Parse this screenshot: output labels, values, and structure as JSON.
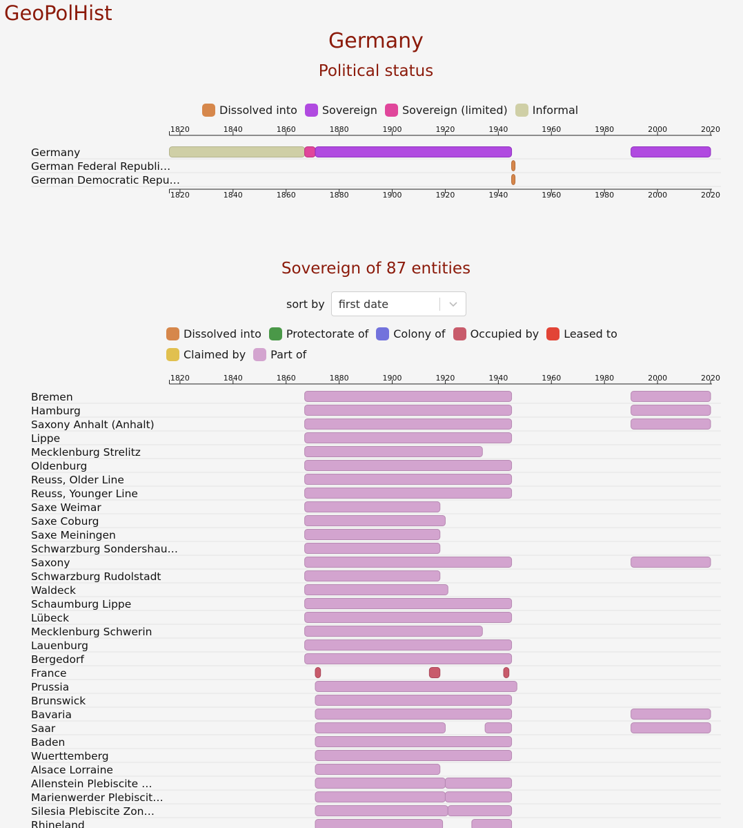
{
  "site": {
    "brand": "GeoPolHist"
  },
  "page": {
    "title": "Germany",
    "status_heading": "Political status",
    "entities_heading": "Sovereign of 87 entities",
    "sort_label": "sort by",
    "sort_value": "first date"
  },
  "colors": {
    "dissolved": "#d6874b",
    "sovereign": "#b04ae0",
    "sovereign_limited": "#e0469b",
    "informal": "#cfcfa6",
    "protectorate": "#4a9848",
    "colony": "#7272dc",
    "occupied": "#c85b6b",
    "leased": "#e24436",
    "claimed": "#e1c04f",
    "part_of": "#d3a4cf"
  },
  "chart_data": [
    {
      "type": "timeline",
      "legend": [
        {
          "label": "Dissolved into",
          "color": "#d6874b"
        },
        {
          "label": "Sovereign",
          "color": "#b04ae0"
        },
        {
          "label": "Sovereign (limited)",
          "color": "#e0469b"
        },
        {
          "label": "Informal",
          "color": "#cfcfa6"
        }
      ],
      "xlim": [
        1816,
        2020
      ],
      "ticks": [
        1820,
        1840,
        1860,
        1880,
        1900,
        1920,
        1940,
        1960,
        1980,
        2000,
        2020
      ],
      "rows": [
        {
          "label": "Germany",
          "spans": [
            {
              "start": 1816,
              "end": 1867,
              "status": "informal"
            },
            {
              "start": 1867,
              "end": 1871,
              "status": "sovereign_limited"
            },
            {
              "start": 1871,
              "end": 1945,
              "status": "sovereign"
            },
            {
              "start": 1990,
              "end": 2020,
              "status": "sovereign"
            }
          ]
        },
        {
          "label": "German Federal Republi…",
          "spans": [
            {
              "start": 1945,
              "end": 1946,
              "status": "dissolved"
            }
          ]
        },
        {
          "label": "German Democratic Repu…",
          "spans": [
            {
              "start": 1945,
              "end": 1946,
              "status": "dissolved"
            }
          ]
        }
      ]
    },
    {
      "type": "timeline",
      "legend": [
        {
          "label": "Dissolved into",
          "color": "#d6874b"
        },
        {
          "label": "Protectorate of",
          "color": "#4a9848"
        },
        {
          "label": "Colony of",
          "color": "#7272dc"
        },
        {
          "label": "Occupied by",
          "color": "#c85b6b"
        },
        {
          "label": "Leased to",
          "color": "#e24436"
        },
        {
          "label": "Claimed by",
          "color": "#e1c04f"
        },
        {
          "label": "Part of",
          "color": "#d3a4cf"
        }
      ],
      "xlim": [
        1816,
        2020
      ],
      "ticks": [
        1820,
        1840,
        1860,
        1880,
        1900,
        1920,
        1940,
        1960,
        1980,
        2000,
        2020
      ],
      "rows": [
        {
          "label": "Bremen",
          "spans": [
            {
              "start": 1867,
              "end": 1945,
              "status": "part_of"
            },
            {
              "start": 1990,
              "end": 2020,
              "status": "part_of"
            }
          ]
        },
        {
          "label": "Hamburg",
          "spans": [
            {
              "start": 1867,
              "end": 1945,
              "status": "part_of"
            },
            {
              "start": 1990,
              "end": 2020,
              "status": "part_of"
            }
          ]
        },
        {
          "label": "Saxony Anhalt (Anhalt)",
          "spans": [
            {
              "start": 1867,
              "end": 1945,
              "status": "part_of"
            },
            {
              "start": 1990,
              "end": 2020,
              "status": "part_of"
            }
          ]
        },
        {
          "label": "Lippe",
          "spans": [
            {
              "start": 1867,
              "end": 1945,
              "status": "part_of"
            }
          ]
        },
        {
          "label": "Mecklenburg Strelitz",
          "spans": [
            {
              "start": 1867,
              "end": 1934,
              "status": "part_of"
            }
          ]
        },
        {
          "label": "Oldenburg",
          "spans": [
            {
              "start": 1867,
              "end": 1945,
              "status": "part_of"
            }
          ]
        },
        {
          "label": "Reuss, Older Line",
          "spans": [
            {
              "start": 1867,
              "end": 1945,
              "status": "part_of"
            }
          ]
        },
        {
          "label": "Reuss, Younger Line",
          "spans": [
            {
              "start": 1867,
              "end": 1945,
              "status": "part_of"
            }
          ]
        },
        {
          "label": "Saxe Weimar",
          "spans": [
            {
              "start": 1867,
              "end": 1918,
              "status": "part_of"
            }
          ]
        },
        {
          "label": "Saxe Coburg",
          "spans": [
            {
              "start": 1867,
              "end": 1920,
              "status": "part_of"
            }
          ]
        },
        {
          "label": "Saxe Meiningen",
          "spans": [
            {
              "start": 1867,
              "end": 1918,
              "status": "part_of"
            }
          ]
        },
        {
          "label": "Schwarzburg Sondershau…",
          "spans": [
            {
              "start": 1867,
              "end": 1918,
              "status": "part_of"
            }
          ]
        },
        {
          "label": "Saxony",
          "spans": [
            {
              "start": 1867,
              "end": 1945,
              "status": "part_of"
            },
            {
              "start": 1990,
              "end": 2020,
              "status": "part_of"
            }
          ]
        },
        {
          "label": "Schwarzburg Rudolstadt",
          "spans": [
            {
              "start": 1867,
              "end": 1918,
              "status": "part_of"
            }
          ]
        },
        {
          "label": "Waldeck",
          "spans": [
            {
              "start": 1867,
              "end": 1921,
              "status": "part_of"
            }
          ]
        },
        {
          "label": "Schaumburg Lippe",
          "spans": [
            {
              "start": 1867,
              "end": 1945,
              "status": "part_of"
            }
          ]
        },
        {
          "label": "Lübeck",
          "spans": [
            {
              "start": 1867,
              "end": 1945,
              "status": "part_of"
            }
          ]
        },
        {
          "label": "Mecklenburg Schwerin",
          "spans": [
            {
              "start": 1867,
              "end": 1934,
              "status": "part_of"
            }
          ]
        },
        {
          "label": "Lauenburg",
          "spans": [
            {
              "start": 1867,
              "end": 1945,
              "status": "part_of"
            }
          ]
        },
        {
          "label": "Bergedorf",
          "spans": [
            {
              "start": 1867,
              "end": 1945,
              "status": "part_of"
            }
          ]
        },
        {
          "label": "France",
          "spans": [
            {
              "start": 1871,
              "end": 1873,
              "status": "occupied"
            },
            {
              "start": 1914,
              "end": 1918,
              "status": "occupied"
            },
            {
              "start": 1942,
              "end": 1944,
              "status": "occupied"
            }
          ]
        },
        {
          "label": "Prussia",
          "spans": [
            {
              "start": 1871,
              "end": 1947,
              "status": "part_of"
            }
          ]
        },
        {
          "label": "Brunswick",
          "spans": [
            {
              "start": 1871,
              "end": 1945,
              "status": "part_of"
            }
          ]
        },
        {
          "label": "Bavaria",
          "spans": [
            {
              "start": 1871,
              "end": 1945,
              "status": "part_of"
            },
            {
              "start": 1990,
              "end": 2020,
              "status": "part_of"
            }
          ]
        },
        {
          "label": "Saar",
          "spans": [
            {
              "start": 1871,
              "end": 1920,
              "status": "part_of"
            },
            {
              "start": 1935,
              "end": 1945,
              "status": "part_of"
            },
            {
              "start": 1990,
              "end": 2020,
              "status": "part_of"
            }
          ]
        },
        {
          "label": "Baden",
          "spans": [
            {
              "start": 1871,
              "end": 1945,
              "status": "part_of"
            }
          ]
        },
        {
          "label": "Wuerttemberg",
          "spans": [
            {
              "start": 1871,
              "end": 1945,
              "status": "part_of"
            }
          ]
        },
        {
          "label": "Alsace Lorraine",
          "spans": [
            {
              "start": 1871,
              "end": 1918,
              "status": "part_of"
            }
          ]
        },
        {
          "label": "Allenstein Plebiscite …",
          "spans": [
            {
              "start": 1871,
              "end": 1920,
              "status": "part_of"
            },
            {
              "start": 1920,
              "end": 1945,
              "status": "part_of"
            }
          ]
        },
        {
          "label": "Marienwerder Plebiscit…",
          "spans": [
            {
              "start": 1871,
              "end": 1920,
              "status": "part_of"
            },
            {
              "start": 1920,
              "end": 1945,
              "status": "part_of"
            }
          ]
        },
        {
          "label": "Silesia Plebiscite Zon…",
          "spans": [
            {
              "start": 1871,
              "end": 1921,
              "status": "part_of"
            },
            {
              "start": 1921,
              "end": 1945,
              "status": "part_of"
            }
          ]
        },
        {
          "label": "Rhineland",
          "spans": [
            {
              "start": 1871,
              "end": 1919,
              "status": "part_of"
            },
            {
              "start": 1930,
              "end": 1945,
              "status": "part_of"
            }
          ]
        }
      ]
    }
  ]
}
